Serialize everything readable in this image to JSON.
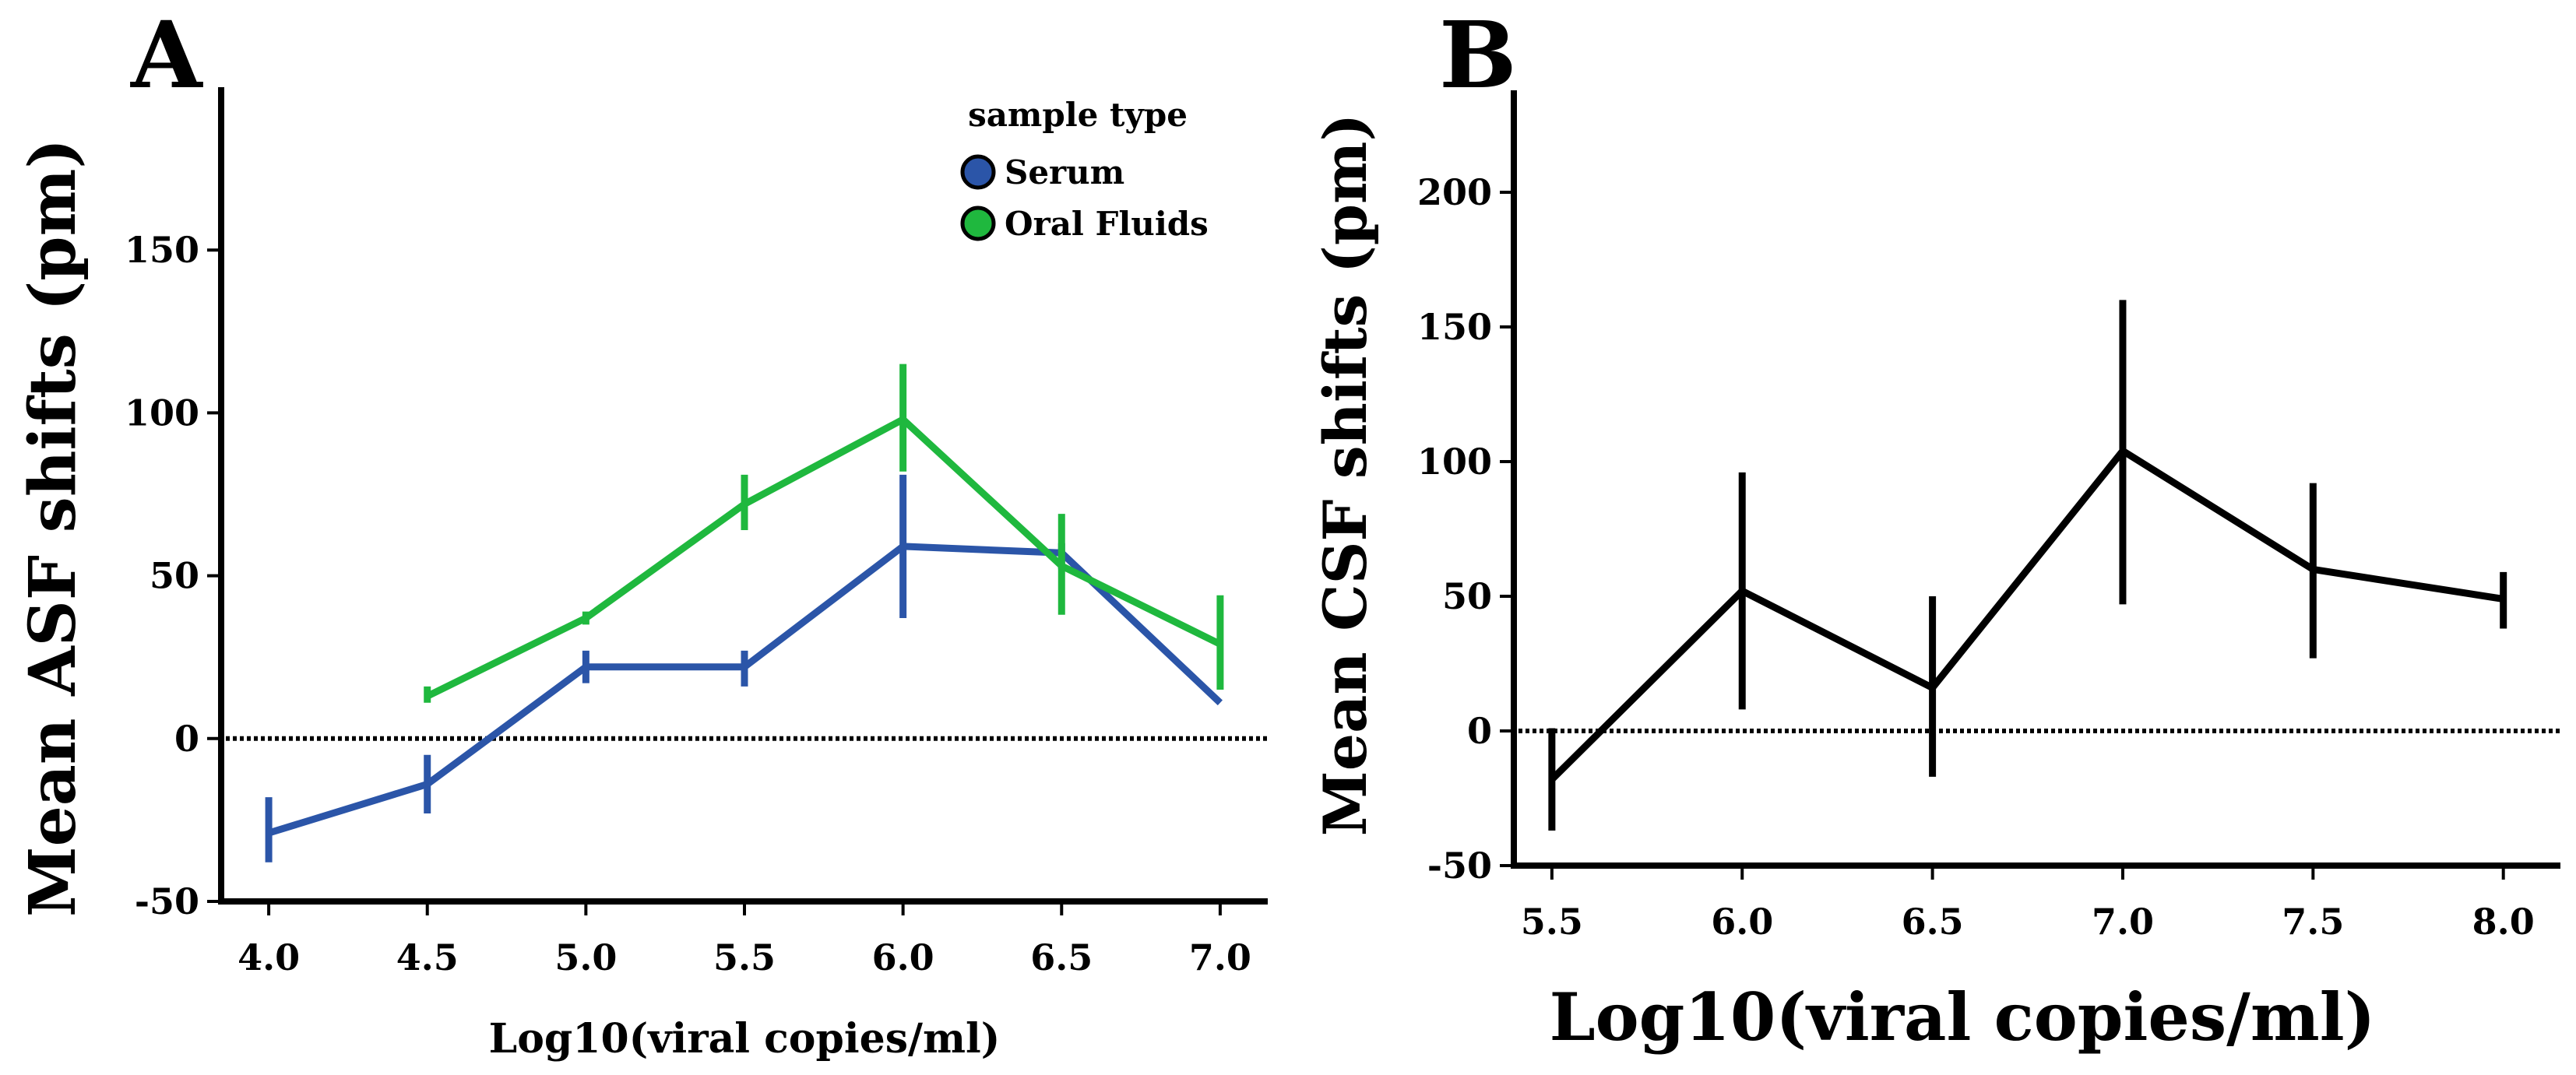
{
  "chart_data": [
    {
      "panel": "A",
      "type": "line",
      "xlabel": "Log10(viral copies/ml)",
      "ylabel": "Mean ASF shifts (pm)",
      "xlim": [
        3.85,
        7.15
      ],
      "ylim": [
        -50,
        200
      ],
      "xticks": [
        4.0,
        4.5,
        5.0,
        5.5,
        6.0,
        6.5,
        7.0
      ],
      "xtick_labels": [
        "4.0",
        "4.5",
        "5.0",
        "5.5",
        "6.0",
        "6.5",
        "7.0"
      ],
      "yticks": [
        -50,
        0,
        50,
        100,
        150
      ],
      "ytick_labels": [
        "-50",
        "0",
        "50",
        "100",
        "150"
      ],
      "reference_line": 0,
      "legend": {
        "title": "sample type",
        "position": "top-right"
      },
      "series": [
        {
          "name": "Serum",
          "color": "#2b55a8",
          "x": [
            4.0,
            4.5,
            5.0,
            5.5,
            6.0,
            6.5,
            7.0
          ],
          "values": [
            -29,
            -14,
            22,
            22,
            59,
            57,
            11
          ],
          "err_low": [
            -38,
            -23,
            17,
            16,
            37,
            52,
            11
          ],
          "err_high": [
            -18,
            -5,
            27,
            27,
            81,
            60,
            11
          ]
        },
        {
          "name": "Oral Fluids",
          "color": "#1fb83e",
          "x": [
            4.5,
            5.0,
            5.5,
            6.0,
            6.5,
            7.0
          ],
          "values": [
            13,
            37,
            72,
            98,
            53,
            29
          ],
          "err_low": [
            11,
            35,
            64,
            82,
            38,
            15
          ],
          "err_high": [
            16,
            39,
            81,
            115,
            69,
            44
          ]
        }
      ]
    },
    {
      "panel": "B",
      "type": "line",
      "xlabel": "Log10(viral copies/ml)",
      "ylabel": "Mean CSF shifts (pm)",
      "xlim": [
        5.4,
        8.15
      ],
      "ylim": [
        -50,
        250
      ],
      "xticks": [
        5.5,
        6.0,
        6.5,
        7.0,
        7.5,
        8.0
      ],
      "xtick_labels": [
        "5.5",
        "6.0",
        "6.5",
        "7.0",
        "7.5",
        "8.0"
      ],
      "yticks": [
        -50,
        0,
        50,
        100,
        150,
        200
      ],
      "ytick_labels": [
        "-50",
        "0",
        "50",
        "100",
        "150",
        "200"
      ],
      "reference_line": 0,
      "series": [
        {
          "name": "CSF",
          "color": "#000000",
          "x": [
            5.5,
            6.0,
            6.5,
            7.0,
            7.5,
            8.0
          ],
          "values": [
            -18,
            52,
            16,
            104,
            60,
            49
          ],
          "err_low": [
            -37,
            8,
            -17,
            47,
            27,
            38
          ],
          "err_high": [
            1,
            96,
            50,
            160,
            92,
            59
          ]
        }
      ]
    }
  ]
}
